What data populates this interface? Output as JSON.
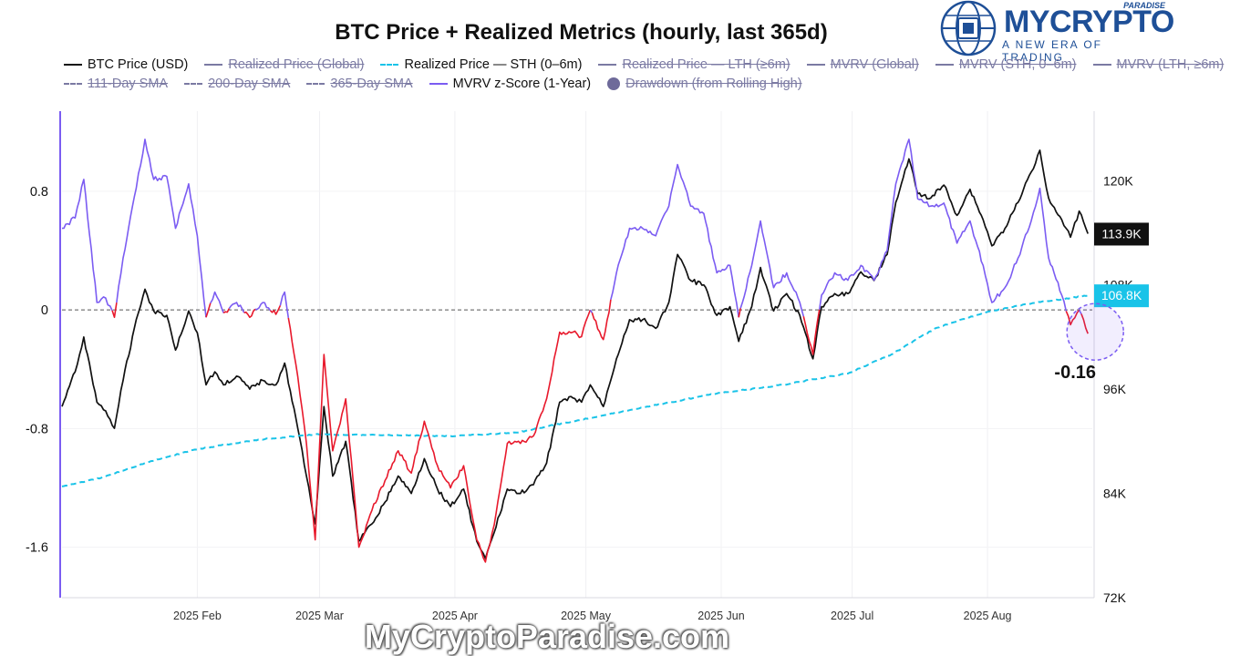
{
  "chart_data": {
    "type": "line",
    "title": "BTC Price + Realized Metrics (hourly, last 365d)",
    "x_axis": {
      "range": [
        "2025-01-01",
        "2025-08-25"
      ],
      "ticks": [
        {
          "date": "2025-02-01",
          "label": "2025 Feb"
        },
        {
          "date": "2025-03-01",
          "label": "2025 Mar"
        },
        {
          "date": "2025-04-01",
          "label": "2025 Apr"
        },
        {
          "date": "2025-05-01",
          "label": "2025 May"
        },
        {
          "date": "2025-06-01",
          "label": "2025 Jun"
        },
        {
          "date": "2025-07-01",
          "label": "2025 Jul"
        },
        {
          "date": "2025-08-01",
          "label": "2025 Aug"
        }
      ]
    },
    "y_left": {
      "range": [
        -1.94,
        1.34
      ],
      "ticks": [
        {
          "value": 0.8,
          "label": "0.8"
        },
        {
          "value": 0,
          "label": "0"
        },
        {
          "value": -0.8,
          "label": "-0.8"
        },
        {
          "value": -1.6,
          "label": "-1.6"
        }
      ]
    },
    "y_right": {
      "range": [
        72000,
        128000
      ],
      "ticks": [
        {
          "value": 120000,
          "label": "120K"
        },
        {
          "value": 108000,
          "label": "108K"
        },
        {
          "value": 96000,
          "label": "96K"
        },
        {
          "value": 84000,
          "label": "84K"
        },
        {
          "value": 72000,
          "label": "72K"
        }
      ]
    },
    "grid": true,
    "zero_reference_line": true,
    "legend_position": "top",
    "legend": [
      {
        "name": "BTC Price (USD)",
        "color": "#111111",
        "style": "solid",
        "active": true
      },
      {
        "name": "Realized Price (Global)",
        "color": "#7b7aa3",
        "style": "solid",
        "active": false
      },
      {
        "name": "Realized Price — STH (0–6m)",
        "color": "#19c3e8",
        "style": "dashed",
        "active": true
      },
      {
        "name": "Realized Price — LTH (≥6m)",
        "color": "#7b7aa3",
        "style": "solid",
        "active": false
      },
      {
        "name": "MVRV (Global)",
        "color": "#7b7aa3",
        "style": "solid",
        "active": false
      },
      {
        "name": "MVRV (STH, 0–6m)",
        "color": "#7b7aa3",
        "style": "solid",
        "active": false
      },
      {
        "name": "MVRV (LTH, ≥6m)",
        "color": "#7b7aa3",
        "style": "solid",
        "active": false
      },
      {
        "name": "111-Day SMA",
        "color": "#7b7aa3",
        "style": "dashed",
        "active": false
      },
      {
        "name": "200-Day SMA",
        "color": "#7b7aa3",
        "style": "dashed",
        "active": false
      },
      {
        "name": "365-Day SMA",
        "color": "#7b7aa3",
        "style": "dashed",
        "active": false
      },
      {
        "name": "MVRV z-Score (1-Year)",
        "color": "#7b5cf2",
        "style": "solid",
        "active": true
      },
      {
        "name": "Drawdown (from Rolling High)",
        "color": "#6e6a9a",
        "style": "dot",
        "active": false
      }
    ],
    "series": [
      {
        "name": "BTC Price (USD)",
        "axis": "right",
        "color": "#111111",
        "points": [
          [
            "2025-01-01",
            94000
          ],
          [
            "2025-01-04",
            98000
          ],
          [
            "2025-01-06",
            102000
          ],
          [
            "2025-01-09",
            94500
          ],
          [
            "2025-01-11",
            93500
          ],
          [
            "2025-01-13",
            91500
          ],
          [
            "2025-01-15",
            97000
          ],
          [
            "2025-01-18",
            104000
          ],
          [
            "2025-01-20",
            107500
          ],
          [
            "2025-01-22",
            105000
          ],
          [
            "2025-01-25",
            104500
          ],
          [
            "2025-01-27",
            100500
          ],
          [
            "2025-01-30",
            105000
          ],
          [
            "2025-02-01",
            102500
          ],
          [
            "2025-02-03",
            96500
          ],
          [
            "2025-02-05",
            98000
          ],
          [
            "2025-02-07",
            96500
          ],
          [
            "2025-02-10",
            97500
          ],
          [
            "2025-02-13",
            96000
          ],
          [
            "2025-02-16",
            97000
          ],
          [
            "2025-02-19",
            96500
          ],
          [
            "2025-02-21",
            99000
          ],
          [
            "2025-02-24",
            91500
          ],
          [
            "2025-02-26",
            86000
          ],
          [
            "2025-02-28",
            80500
          ],
          [
            "2025-03-02",
            94000
          ],
          [
            "2025-03-04",
            86000
          ],
          [
            "2025-03-07",
            90000
          ],
          [
            "2025-03-10",
            78500
          ],
          [
            "2025-03-13",
            80500
          ],
          [
            "2025-03-16",
            83000
          ],
          [
            "2025-03-19",
            86000
          ],
          [
            "2025-03-22",
            84000
          ],
          [
            "2025-03-25",
            88000
          ],
          [
            "2025-03-28",
            84500
          ],
          [
            "2025-03-31",
            82500
          ],
          [
            "2025-04-03",
            84500
          ],
          [
            "2025-04-06",
            78500
          ],
          [
            "2025-04-08",
            76500
          ],
          [
            "2025-04-10",
            79500
          ],
          [
            "2025-04-13",
            84500
          ],
          [
            "2025-04-16",
            84000
          ],
          [
            "2025-04-19",
            85000
          ],
          [
            "2025-04-22",
            87500
          ],
          [
            "2025-04-25",
            94500
          ],
          [
            "2025-04-28",
            95000
          ],
          [
            "2025-04-30",
            94500
          ],
          [
            "2025-05-02",
            96500
          ],
          [
            "2025-05-05",
            94000
          ],
          [
            "2025-05-08",
            99500
          ],
          [
            "2025-05-11",
            104000
          ],
          [
            "2025-05-14",
            104000
          ],
          [
            "2025-05-17",
            103000
          ],
          [
            "2025-05-20",
            106000
          ],
          [
            "2025-05-22",
            111500
          ],
          [
            "2025-05-25",
            108500
          ],
          [
            "2025-05-28",
            108000
          ],
          [
            "2025-05-31",
            104500
          ],
          [
            "2025-06-03",
            105500
          ],
          [
            "2025-06-05",
            101500
          ],
          [
            "2025-06-08",
            105500
          ],
          [
            "2025-06-10",
            110000
          ],
          [
            "2025-06-13",
            105000
          ],
          [
            "2025-06-16",
            107000
          ],
          [
            "2025-06-19",
            104500
          ],
          [
            "2025-06-22",
            99500
          ],
          [
            "2025-06-24",
            105500
          ],
          [
            "2025-06-27",
            107000
          ],
          [
            "2025-06-30",
            107000
          ],
          [
            "2025-07-03",
            109500
          ],
          [
            "2025-07-06",
            108500
          ],
          [
            "2025-07-09",
            111500
          ],
          [
            "2025-07-11",
            117500
          ],
          [
            "2025-07-14",
            122500
          ],
          [
            "2025-07-16",
            118500
          ],
          [
            "2025-07-19",
            118000
          ],
          [
            "2025-07-22",
            119500
          ],
          [
            "2025-07-25",
            116000
          ],
          [
            "2025-07-28",
            119000
          ],
          [
            "2025-07-31",
            115500
          ],
          [
            "2025-08-02",
            112500
          ],
          [
            "2025-08-05",
            114500
          ],
          [
            "2025-08-08",
            117500
          ],
          [
            "2025-08-11",
            121000
          ],
          [
            "2025-08-13",
            123500
          ],
          [
            "2025-08-15",
            118000
          ],
          [
            "2025-08-18",
            115500
          ],
          [
            "2025-08-20",
            113500
          ],
          [
            "2025-08-22",
            116500
          ],
          [
            "2025-08-24",
            113900
          ]
        ]
      },
      {
        "name": "Realized Price — STH (0–6m)",
        "axis": "right",
        "color": "#19c3e8",
        "style": "dashed",
        "points": [
          [
            "2025-01-01",
            84800
          ],
          [
            "2025-01-10",
            85800
          ],
          [
            "2025-01-20",
            87500
          ],
          [
            "2025-01-31",
            89000
          ],
          [
            "2025-02-15",
            90200
          ],
          [
            "2025-02-28",
            90800
          ],
          [
            "2025-03-15",
            90700
          ],
          [
            "2025-03-31",
            90600
          ],
          [
            "2025-04-15",
            91000
          ],
          [
            "2025-04-30",
            92500
          ],
          [
            "2025-05-15",
            94000
          ],
          [
            "2025-05-31",
            95500
          ],
          [
            "2025-06-15",
            96500
          ],
          [
            "2025-06-30",
            97800
          ],
          [
            "2025-07-10",
            100000
          ],
          [
            "2025-07-20",
            103000
          ],
          [
            "2025-07-31",
            104800
          ],
          [
            "2025-08-10",
            105800
          ],
          [
            "2025-08-20",
            106500
          ],
          [
            "2025-08-24",
            106800
          ]
        ]
      },
      {
        "name": "MVRV z-Score (1-Year)",
        "axis": "left",
        "color": "#7b5cf2",
        "negative_color": "#e8192c",
        "points": [
          [
            "2025-01-01",
            0.55
          ],
          [
            "2025-01-04",
            0.62
          ],
          [
            "2025-01-06",
            0.88
          ],
          [
            "2025-01-09",
            0.05
          ],
          [
            "2025-01-11",
            0.08
          ],
          [
            "2025-01-13",
            -0.05
          ],
          [
            "2025-01-15",
            0.35
          ],
          [
            "2025-01-18",
            0.82
          ],
          [
            "2025-01-20",
            1.15
          ],
          [
            "2025-01-22",
            0.88
          ],
          [
            "2025-01-25",
            0.9
          ],
          [
            "2025-01-27",
            0.55
          ],
          [
            "2025-01-30",
            0.85
          ],
          [
            "2025-02-01",
            0.5
          ],
          [
            "2025-02-03",
            -0.05
          ],
          [
            "2025-02-05",
            0.12
          ],
          [
            "2025-02-07",
            -0.02
          ],
          [
            "2025-02-10",
            0.05
          ],
          [
            "2025-02-13",
            -0.05
          ],
          [
            "2025-02-16",
            0.05
          ],
          [
            "2025-02-19",
            -0.03
          ],
          [
            "2025-02-21",
            0.12
          ],
          [
            "2025-02-24",
            -0.45
          ],
          [
            "2025-02-26",
            -0.9
          ],
          [
            "2025-02-28",
            -1.55
          ],
          [
            "2025-03-02",
            -0.3
          ],
          [
            "2025-03-04",
            -0.95
          ],
          [
            "2025-03-07",
            -0.6
          ],
          [
            "2025-03-10",
            -1.6
          ],
          [
            "2025-03-13",
            -1.35
          ],
          [
            "2025-03-16",
            -1.15
          ],
          [
            "2025-03-19",
            -0.95
          ],
          [
            "2025-03-22",
            -1.1
          ],
          [
            "2025-03-25",
            -0.75
          ],
          [
            "2025-03-28",
            -1.05
          ],
          [
            "2025-03-31",
            -1.2
          ],
          [
            "2025-04-03",
            -1.05
          ],
          [
            "2025-04-06",
            -1.55
          ],
          [
            "2025-04-08",
            -1.7
          ],
          [
            "2025-04-10",
            -1.45
          ],
          [
            "2025-04-13",
            -0.9
          ],
          [
            "2025-04-16",
            -0.9
          ],
          [
            "2025-04-19",
            -0.85
          ],
          [
            "2025-04-22",
            -0.6
          ],
          [
            "2025-04-25",
            -0.15
          ],
          [
            "2025-04-28",
            -0.15
          ],
          [
            "2025-04-30",
            -0.18
          ],
          [
            "2025-05-02",
            0.0
          ],
          [
            "2025-05-05",
            -0.2
          ],
          [
            "2025-05-08",
            0.25
          ],
          [
            "2025-05-11",
            0.55
          ],
          [
            "2025-05-14",
            0.55
          ],
          [
            "2025-05-17",
            0.5
          ],
          [
            "2025-05-20",
            0.7
          ],
          [
            "2025-05-22",
            0.98
          ],
          [
            "2025-05-25",
            0.7
          ],
          [
            "2025-05-28",
            0.65
          ],
          [
            "2025-05-31",
            0.25
          ],
          [
            "2025-06-03",
            0.3
          ],
          [
            "2025-06-05",
            -0.05
          ],
          [
            "2025-06-08",
            0.3
          ],
          [
            "2025-06-10",
            0.6
          ],
          [
            "2025-06-13",
            0.15
          ],
          [
            "2025-06-16",
            0.25
          ],
          [
            "2025-06-19",
            0.05
          ],
          [
            "2025-06-22",
            -0.3
          ],
          [
            "2025-06-24",
            0.1
          ],
          [
            "2025-06-27",
            0.25
          ],
          [
            "2025-06-30",
            0.2
          ],
          [
            "2025-07-03",
            0.3
          ],
          [
            "2025-07-06",
            0.2
          ],
          [
            "2025-07-09",
            0.4
          ],
          [
            "2025-07-11",
            0.85
          ],
          [
            "2025-07-14",
            1.15
          ],
          [
            "2025-07-16",
            0.75
          ],
          [
            "2025-07-19",
            0.7
          ],
          [
            "2025-07-22",
            0.72
          ],
          [
            "2025-07-25",
            0.45
          ],
          [
            "2025-07-28",
            0.6
          ],
          [
            "2025-07-31",
            0.3
          ],
          [
            "2025-08-02",
            0.05
          ],
          [
            "2025-08-05",
            0.15
          ],
          [
            "2025-08-08",
            0.35
          ],
          [
            "2025-08-11",
            0.6
          ],
          [
            "2025-08-13",
            0.82
          ],
          [
            "2025-08-15",
            0.35
          ],
          [
            "2025-08-18",
            0.1
          ],
          [
            "2025-08-20",
            -0.1
          ],
          [
            "2025-08-22",
            0.0
          ],
          [
            "2025-08-24",
            -0.16
          ]
        ]
      }
    ],
    "annotations": [
      {
        "type": "value_label",
        "axis": "right",
        "series": "BTC Price (USD)",
        "value": 113900,
        "text": "113.9K",
        "background": "#111111"
      },
      {
        "type": "value_label",
        "axis": "right",
        "series": "Realized Price — STH (0–6m)",
        "value": 106800,
        "text": "106.8K",
        "background": "#19c3e8"
      },
      {
        "type": "callout",
        "date": "2025-08-24",
        "value": -0.16,
        "text": "-0.16"
      }
    ]
  },
  "branding": {
    "brand": "MYCRYPTO",
    "paradise": "PARADISE",
    "tagline": "A NEW ERA OF TRADING"
  },
  "watermark": "MyCryptoParadise.com",
  "colors": {
    "price": "#111111",
    "sth_realized": "#19c3e8",
    "zscore": "#7b5cf2",
    "zscore_negative": "#e8192c",
    "inactive_legend": "#7b7aa3",
    "brand_blue": "#1e4f97"
  }
}
